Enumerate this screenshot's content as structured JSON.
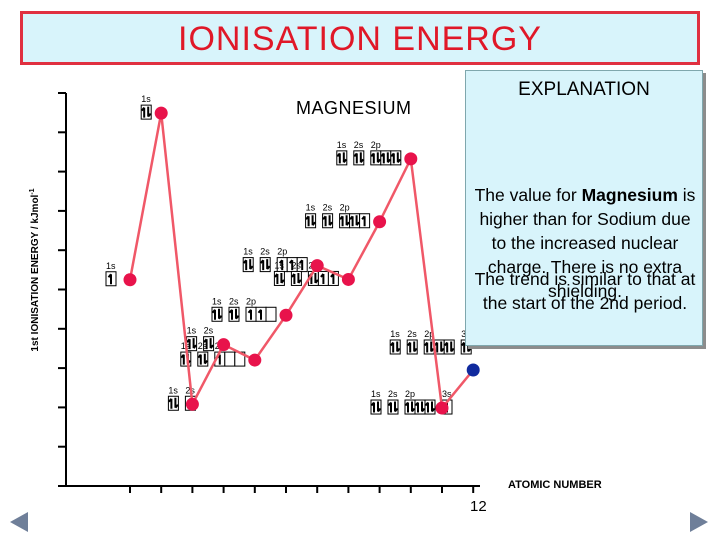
{
  "title": "IONISATION ENERGY",
  "explanation": {
    "heading": "EXPLANATION",
    "para1_a": "The value for",
    "para1_bold": "Magnesium",
    "para1_b": "is higher than for Sodium due to the increased nuclear charge. There is no extra shielding.",
    "para2": "The trend is similar to that at the start of the 2nd period."
  },
  "element_label": "MAGNESIUM",
  "chart_data": {
    "type": "line",
    "ylabel": "1st IONISATION ENERGY / kJmol",
    "ylabel_sup": "-1",
    "xlabel": "ATOMIC NUMBER",
    "x_tick_label": "12",
    "ylim": [
      0,
      2500
    ],
    "x": [
      1,
      2,
      3,
      4,
      5,
      6,
      7,
      8,
      9,
      10,
      11,
      12
    ],
    "values": [
      1312,
      2372,
      520,
      899,
      801,
      1086,
      1402,
      1314,
      1681,
      2081,
      496,
      738
    ],
    "highlight_point": 12,
    "colors": {
      "line": "#f05868",
      "point": "#e8134b",
      "highlight": "#102a9e",
      "axis": "#000000"
    },
    "configs": [
      {
        "x": 1,
        "orbitals": [
          {
            "label": "1s",
            "boxes": [
              1
            ]
          }
        ]
      },
      {
        "x": 2,
        "orbitals": [
          {
            "label": "1s",
            "boxes": [
              2
            ]
          }
        ]
      },
      {
        "x": 3,
        "orbitals": [
          {
            "label": "1s",
            "boxes": [
              2
            ]
          },
          {
            "label": "2s",
            "boxes": [
              1
            ]
          }
        ]
      },
      {
        "x": 4,
        "orbitals": [
          {
            "label": "1s",
            "boxes": [
              2
            ]
          },
          {
            "label": "2s",
            "boxes": [
              2
            ]
          }
        ]
      },
      {
        "x": 5,
        "orbitals": [
          {
            "label": "1s",
            "boxes": [
              2
            ]
          },
          {
            "label": "2s",
            "boxes": [
              2
            ]
          },
          {
            "label": "2p",
            "boxes": [
              1,
              0,
              0
            ]
          }
        ]
      },
      {
        "x": 6,
        "orbitals": [
          {
            "label": "1s",
            "boxes": [
              2
            ]
          },
          {
            "label": "2s",
            "boxes": [
              2
            ]
          },
          {
            "label": "2p",
            "boxes": [
              1,
              1,
              0
            ]
          }
        ]
      },
      {
        "x": 7,
        "orbitals": [
          {
            "label": "1s",
            "boxes": [
              2
            ]
          },
          {
            "label": "2s",
            "boxes": [
              2
            ]
          },
          {
            "label": "2p",
            "boxes": [
              1,
              1,
              1
            ]
          }
        ]
      },
      {
        "x": 8,
        "orbitals": [
          {
            "label": "1s",
            "boxes": [
              2
            ]
          },
          {
            "label": "2s",
            "boxes": [
              2
            ]
          },
          {
            "label": "2p",
            "boxes": [
              2,
              1,
              1
            ]
          }
        ]
      },
      {
        "x": 9,
        "orbitals": [
          {
            "label": "1s",
            "boxes": [
              2
            ]
          },
          {
            "label": "2s",
            "boxes": [
              2
            ]
          },
          {
            "label": "2p",
            "boxes": [
              2,
              2,
              1
            ]
          }
        ]
      },
      {
        "x": 10,
        "orbitals": [
          {
            "label": "1s",
            "boxes": [
              2
            ]
          },
          {
            "label": "2s",
            "boxes": [
              2
            ]
          },
          {
            "label": "2p",
            "boxes": [
              2,
              2,
              2
            ]
          }
        ]
      },
      {
        "x": 11,
        "orbitals": [
          {
            "label": "1s",
            "boxes": [
              2
            ]
          },
          {
            "label": "2s",
            "boxes": [
              2
            ]
          },
          {
            "label": "2p",
            "boxes": [
              2,
              2,
              2
            ]
          },
          {
            "label": "3s",
            "boxes": [
              1
            ]
          }
        ]
      },
      {
        "x": 12,
        "orbitals": [
          {
            "label": "1s",
            "boxes": [
              2
            ]
          },
          {
            "label": "2s",
            "boxes": [
              2
            ]
          },
          {
            "label": "2p",
            "boxes": [
              2,
              2,
              2
            ]
          },
          {
            "label": "3s",
            "boxes": [
              2
            ]
          }
        ]
      }
    ]
  }
}
